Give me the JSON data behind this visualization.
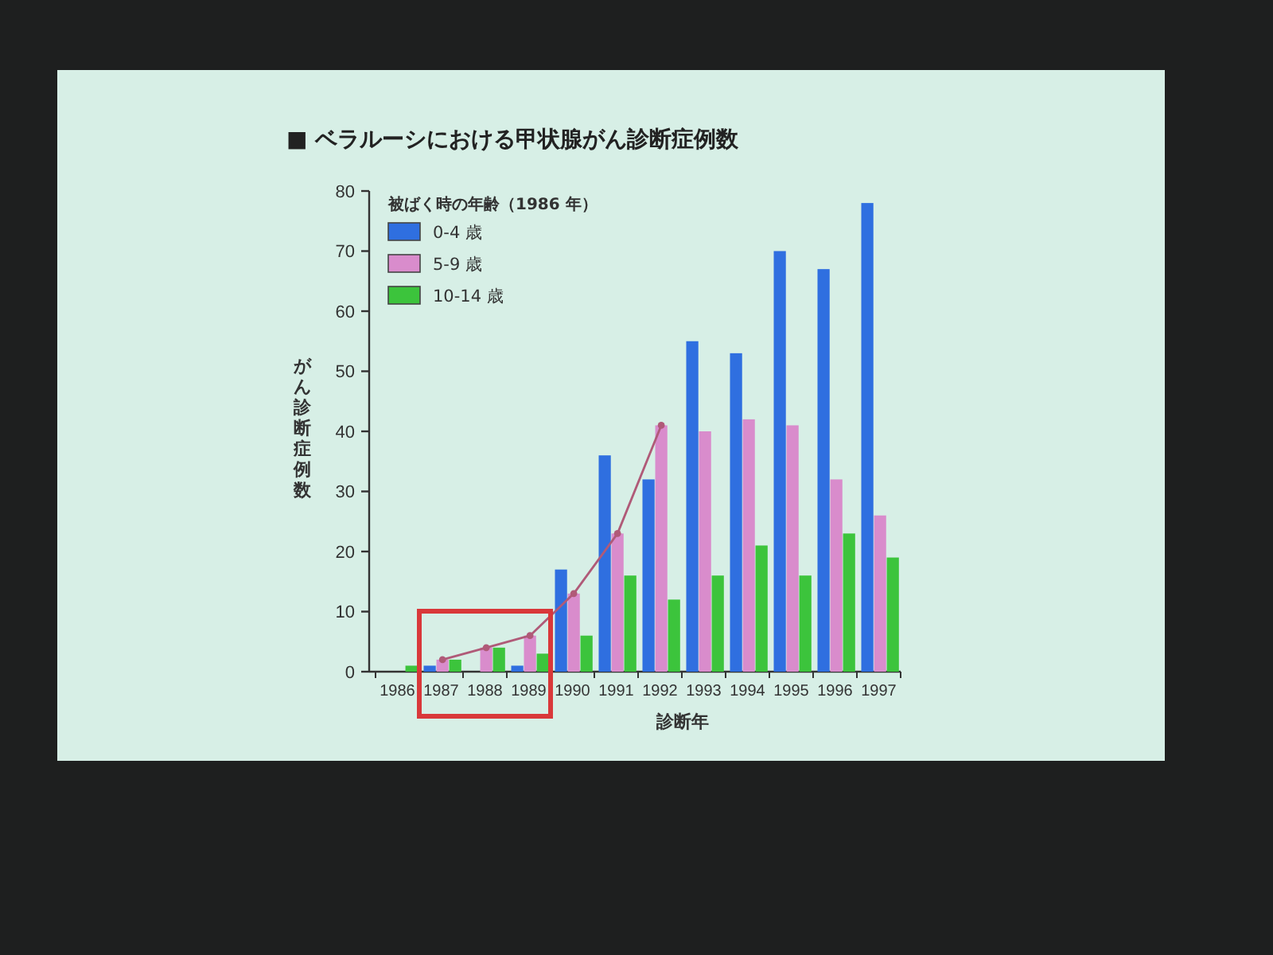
{
  "chart_data": {
    "type": "bar",
    "title": "■ ベラルーシにおける甲状腺がん診断症例数",
    "xlabel": "診断年",
    "ylabel": "がん診断症例数",
    "legend_title": "被ばく時の年齢（1986 年）",
    "categories": [
      "1986",
      "1987",
      "1988",
      "1989",
      "1990",
      "1991",
      "1992",
      "1993",
      "1994",
      "1995",
      "1996",
      "1997"
    ],
    "series": [
      {
        "name": "0-4 歳",
        "color": "#2f6fe0",
        "values": [
          0,
          1,
          0,
          1,
          17,
          36,
          32,
          55,
          53,
          70,
          67,
          78
        ]
      },
      {
        "name": "5-9 歳",
        "color": "#d98ccc",
        "values": [
          0,
          2,
          4,
          6,
          13,
          23,
          41,
          40,
          42,
          41,
          32,
          26
        ]
      },
      {
        "name": "10-14 歳",
        "color": "#3cc43c",
        "values": [
          1,
          2,
          4,
          3,
          6,
          16,
          12,
          16,
          21,
          16,
          23,
          19
        ]
      },
      {
        "type": "line",
        "color": "#b05a78",
        "values": [
          null,
          2,
          4,
          6,
          13,
          23,
          41,
          null,
          null,
          null,
          null,
          null
        ]
      }
    ],
    "marker": "circle",
    "ylim": [
      0,
      80
    ],
    "yticks": [
      0,
      10,
      20,
      30,
      40,
      50,
      60,
      70,
      80
    ],
    "legend": "top left"
  }
}
